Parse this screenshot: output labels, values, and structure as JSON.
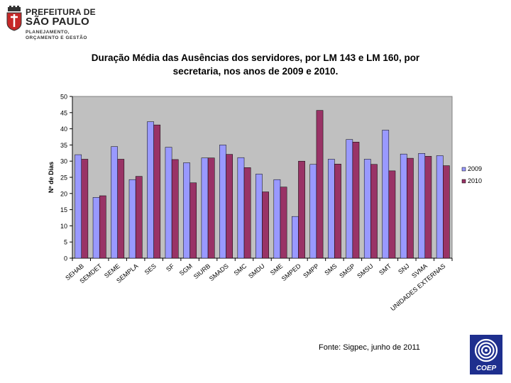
{
  "header": {
    "logo_line1": "PREFEITURA DE",
    "logo_line2": "SÃO PAULO",
    "logo_sub1": "PLANEJAMENTO,",
    "logo_sub2": "ORÇAMENTO E GESTÃO"
  },
  "footer": {
    "source": "Fonte: Sigpec, junho de 2011",
    "coep_label": "COEP"
  },
  "colors": {
    "plot_bg": "#c0c0c0",
    "series_2009": "#9999ff",
    "series_2010": "#993366"
  },
  "chart_data": {
    "type": "bar",
    "title": "Duração Média das Ausências dos servidores, por LM 143 e LM 160, por secretaria, nos anos de 2009 e 2010.",
    "title_line1": "Duração Média das Ausências dos servidores, por LM 143 e LM 160, por",
    "title_line2": "secretaria, nos anos de 2009 e 2010.",
    "xlabel": "",
    "ylabel": "Nº de Dias",
    "ylim": [
      0,
      50
    ],
    "yticks": [
      0,
      5,
      10,
      15,
      20,
      25,
      30,
      35,
      40,
      45,
      50
    ],
    "grid": false,
    "legend_position": "right",
    "categories": [
      "SEHAB",
      "SEMDET",
      "SEME",
      "SEMPLA",
      "SES",
      "SF",
      "SGM",
      "SIURB",
      "SMADS",
      "SMC",
      "SMDU",
      "SME",
      "SMPED",
      "SMPP",
      "SMS",
      "SMSP",
      "SMSU",
      "SMT",
      "SNJ",
      "SVMA",
      "UNIDADES EXTERNAS"
    ],
    "series": [
      {
        "name": "2009",
        "values": [
          32.0,
          18.8,
          34.5,
          24.3,
          42.2,
          34.3,
          29.5,
          31.0,
          35.0,
          31.1,
          26.0,
          24.3,
          12.9,
          29.0,
          30.6,
          36.7,
          30.6,
          39.6,
          32.2,
          32.4,
          31.7
        ]
      },
      {
        "name": "2010",
        "values": [
          30.6,
          19.3,
          30.6,
          25.3,
          41.2,
          30.5,
          23.3,
          31.0,
          32.1,
          28.0,
          20.5,
          22.0,
          30.0,
          45.7,
          29.1,
          35.9,
          29.0,
          27.0,
          30.9,
          31.5,
          28.6
        ]
      }
    ]
  }
}
